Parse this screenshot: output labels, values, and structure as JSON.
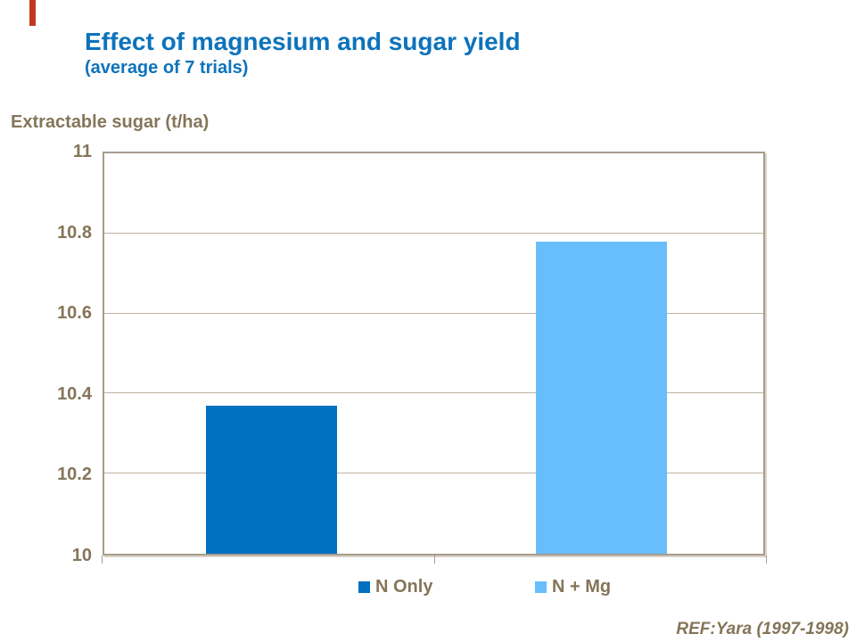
{
  "slide": {
    "title": "Effect of magnesium and sugar yield",
    "subtitle": "(average of 7 trials)",
    "reference": "REF:Yara (1997-1998)"
  },
  "colors": {
    "title_blue": "#0d73bb",
    "text_brown": "#857559",
    "axis_border": "#a79c8e",
    "gridline": "#bfb2a2",
    "accent_stripe": "#c0391e",
    "background": "#ffffff"
  },
  "chart_data": {
    "type": "bar",
    "title": "Effect of magnesium and sugar yield (average of 7 trials)",
    "axis_title": "Extractable sugar (t/ha)",
    "xlabel": "",
    "ylabel": "Extractable sugar (t/ha)",
    "categories": [
      "N Only",
      "N + Mg"
    ],
    "series": [
      {
        "name": "N Only",
        "value": 10.37,
        "color": "#0070c0"
      },
      {
        "name": "N + Mg",
        "value": 10.78,
        "color": "#68bdfb"
      }
    ],
    "ylim": [
      10,
      11
    ],
    "yticks": [
      {
        "label": "10",
        "value": 10
      },
      {
        "label": "10.2",
        "value": 10.2
      },
      {
        "label": "10.4",
        "value": 10.4
      },
      {
        "label": "10.6",
        "value": 10.6
      },
      {
        "label": "10.8",
        "value": 10.8
      },
      {
        "label": "11",
        "value": 11
      }
    ],
    "grid": true,
    "legend_position": "bottom"
  }
}
